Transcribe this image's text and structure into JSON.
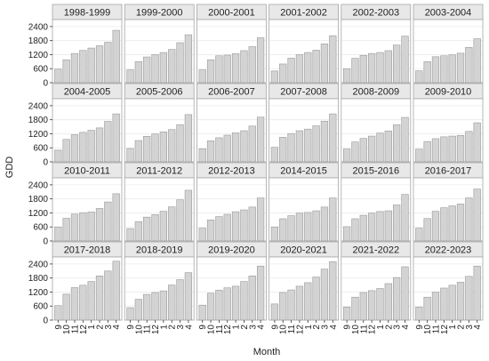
{
  "chart_data": {
    "type": "bar",
    "xlabel": "Month",
    "ylabel": "GDD",
    "categories": [
      "9",
      "10",
      "11",
      "12",
      "1",
      "2",
      "3",
      "4"
    ],
    "yticks": [
      0,
      600,
      1200,
      1800,
      2400
    ],
    "ylim": [
      0,
      2700
    ],
    "grid": true,
    "colors": {
      "bar_fill": "#d3d3d3",
      "bar_stroke": "#9a9a9a",
      "strip_bg": "#e8e8e8",
      "panel_border": "#a6a6a6",
      "grid": "#ebebeb"
    },
    "facets": [
      {
        "label": "1998-1999",
        "values": [
          580,
          980,
          1250,
          1380,
          1480,
          1580,
          1730,
          2240
        ]
      },
      {
        "label": "1999-2000",
        "values": [
          550,
          900,
          1100,
          1200,
          1290,
          1420,
          1710,
          2050
        ]
      },
      {
        "label": "2000-2001",
        "values": [
          550,
          980,
          1150,
          1180,
          1240,
          1370,
          1540,
          1920
        ]
      },
      {
        "label": "2001-2002",
        "values": [
          500,
          800,
          1050,
          1200,
          1290,
          1390,
          1660,
          2010
        ]
      },
      {
        "label": "2002-2003",
        "values": [
          600,
          1040,
          1170,
          1250,
          1290,
          1370,
          1610,
          1990
        ]
      },
      {
        "label": "2003-2004",
        "values": [
          510,
          900,
          1110,
          1150,
          1190,
          1260,
          1510,
          1880
        ]
      },
      {
        "label": "2004-2005",
        "values": [
          500,
          960,
          1160,
          1260,
          1350,
          1450,
          1730,
          2050
        ]
      },
      {
        "label": "2005-2006",
        "values": [
          570,
          910,
          1090,
          1190,
          1280,
          1380,
          1590,
          2020
        ]
      },
      {
        "label": "2006-2007",
        "values": [
          560,
          900,
          1030,
          1140,
          1240,
          1330,
          1530,
          1910
        ]
      },
      {
        "label": "2007-2008",
        "values": [
          620,
          1050,
          1210,
          1330,
          1400,
          1540,
          1740,
          2050
        ]
      },
      {
        "label": "2008-2009",
        "values": [
          550,
          850,
          1000,
          1100,
          1230,
          1320,
          1590,
          1900
        ]
      },
      {
        "label": "2009-2010",
        "values": [
          540,
          870,
          990,
          1070,
          1100,
          1130,
          1300,
          1670
        ]
      },
      {
        "label": "2010-2011",
        "values": [
          600,
          970,
          1150,
          1210,
          1240,
          1390,
          1670,
          2020
        ]
      },
      {
        "label": "2011-2012",
        "values": [
          530,
          830,
          1020,
          1130,
          1270,
          1460,
          1760,
          2170
        ]
      },
      {
        "label": "2012-2013",
        "values": [
          550,
          900,
          1040,
          1140,
          1250,
          1330,
          1450,
          1840
        ]
      },
      {
        "label": "2014-2015",
        "values": [
          600,
          950,
          1080,
          1190,
          1220,
          1290,
          1450,
          1840
        ]
      },
      {
        "label": "2015-2016",
        "values": [
          610,
          950,
          1100,
          1190,
          1260,
          1290,
          1540,
          1990
        ]
      },
      {
        "label": "2016-2017",
        "values": [
          550,
          960,
          1270,
          1420,
          1500,
          1580,
          1840,
          2220
        ]
      },
      {
        "label": "2017-2018",
        "values": [
          620,
          1110,
          1390,
          1490,
          1650,
          1890,
          2100,
          2520
        ]
      },
      {
        "label": "2018-2019",
        "values": [
          530,
          890,
          1100,
          1180,
          1250,
          1500,
          1730,
          2030
        ]
      },
      {
        "label": "2019-2020",
        "values": [
          640,
          1150,
          1280,
          1380,
          1450,
          1650,
          1890,
          2310
        ]
      },
      {
        "label": "2020-2021",
        "values": [
          690,
          1180,
          1290,
          1450,
          1600,
          1840,
          2180,
          2500
        ]
      },
      {
        "label": "2021-2022",
        "values": [
          560,
          980,
          1180,
          1260,
          1350,
          1560,
          1820,
          2280
        ]
      },
      {
        "label": "2022-2023",
        "values": [
          560,
          980,
          1190,
          1370,
          1490,
          1620,
          1870,
          2310
        ]
      }
    ]
  }
}
